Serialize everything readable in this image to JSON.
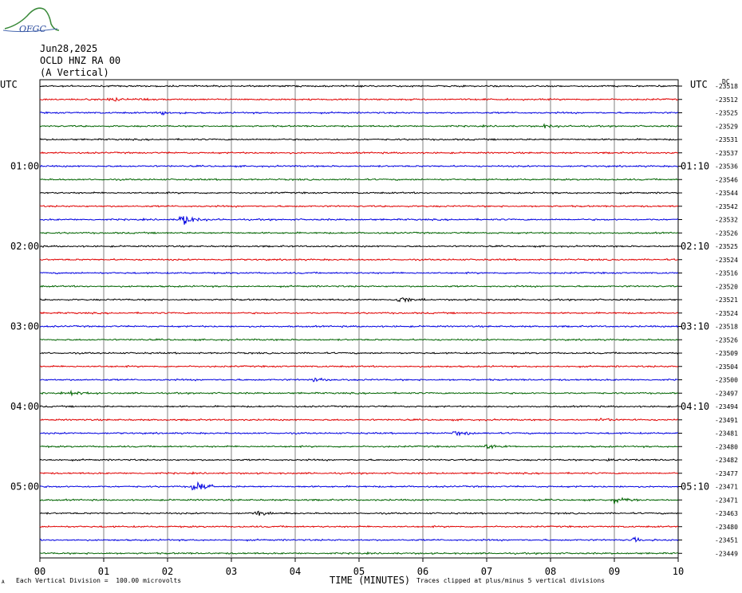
{
  "header": {
    "logo_text": "OFGC",
    "date": "Jun28,2025",
    "station": "OCLD HNZ RA 00",
    "component": "(A Vertical)"
  },
  "left_axis_title": "UTC",
  "right_axis_title": "UTC",
  "right_units_label": "DC",
  "footer": {
    "marker": "A",
    "division_note": "Each Vertical Division =  100.00 microvolts",
    "xaxis_title": "TIME (MINUTES)",
    "clip_note": "Traces clipped at plus/minus 5 vertical divisions"
  },
  "chart_data": {
    "type": "line",
    "title": "",
    "xlabel": "TIME (MINUTES)",
    "x_ticks": [
      "00",
      "01",
      "02",
      "03",
      "04",
      "05",
      "06",
      "07",
      "08",
      "09",
      "10"
    ],
    "xlim": [
      0,
      10
    ],
    "grid": true,
    "trace_colors": [
      "#000000",
      "#e00000",
      "#0000e0",
      "#006400"
    ],
    "left_hour_labels": [
      {
        "row": 6,
        "label": "01:00"
      },
      {
        "row": 12,
        "label": "02:00"
      },
      {
        "row": 18,
        "label": "03:00"
      },
      {
        "row": 24,
        "label": "04:00"
      },
      {
        "row": 30,
        "label": "05:00"
      }
    ],
    "right_hour_labels": [
      {
        "row": 6,
        "label": "01:10"
      },
      {
        "row": 12,
        "label": "02:10"
      },
      {
        "row": 18,
        "label": "03:10"
      },
      {
        "row": 24,
        "label": "04:10"
      },
      {
        "row": 30,
        "label": "05:10"
      }
    ],
    "dc_offsets": [
      "-23518",
      "-23512",
      "-23525",
      "-23529",
      "-23531",
      "-23537",
      "-23536",
      "-23546",
      "-23544",
      "-23542",
      "-23532",
      "-23526",
      "-23525",
      "-23524",
      "-23516",
      "-23520",
      "-23521",
      "-23524",
      "-23518",
      "-23526",
      "-23509",
      "-23504",
      "-23500",
      "-23497",
      "-23494",
      "-23491",
      "-23481",
      "-23480",
      "-23482",
      "-23477",
      "-23471",
      "-23471",
      "-23463",
      "-23480",
      "-23451",
      "-23449"
    ],
    "events": [
      {
        "row": 1,
        "t": 1.1,
        "amp": 1.8
      },
      {
        "row": 2,
        "t": 1.9,
        "amp": 1.4
      },
      {
        "row": 3,
        "t": 7.9,
        "amp": 1.3
      },
      {
        "row": 10,
        "t": 2.2,
        "amp": 3.5
      },
      {
        "row": 16,
        "t": 5.6,
        "amp": 1.8
      },
      {
        "row": 22,
        "t": 4.3,
        "amp": 1.3
      },
      {
        "row": 23,
        "t": 0.5,
        "amp": 1.4
      },
      {
        "row": 25,
        "t": 8.8,
        "amp": 1.3
      },
      {
        "row": 26,
        "t": 6.5,
        "amp": 1.5
      },
      {
        "row": 27,
        "t": 7.0,
        "amp": 1.6
      },
      {
        "row": 28,
        "t": 8.9,
        "amp": 1.3
      },
      {
        "row": 30,
        "t": 2.4,
        "amp": 3.0
      },
      {
        "row": 31,
        "t": 9.0,
        "amp": 1.8
      },
      {
        "row": 32,
        "t": 3.4,
        "amp": 1.6
      },
      {
        "row": 34,
        "t": 9.3,
        "amp": 1.3
      }
    ]
  }
}
